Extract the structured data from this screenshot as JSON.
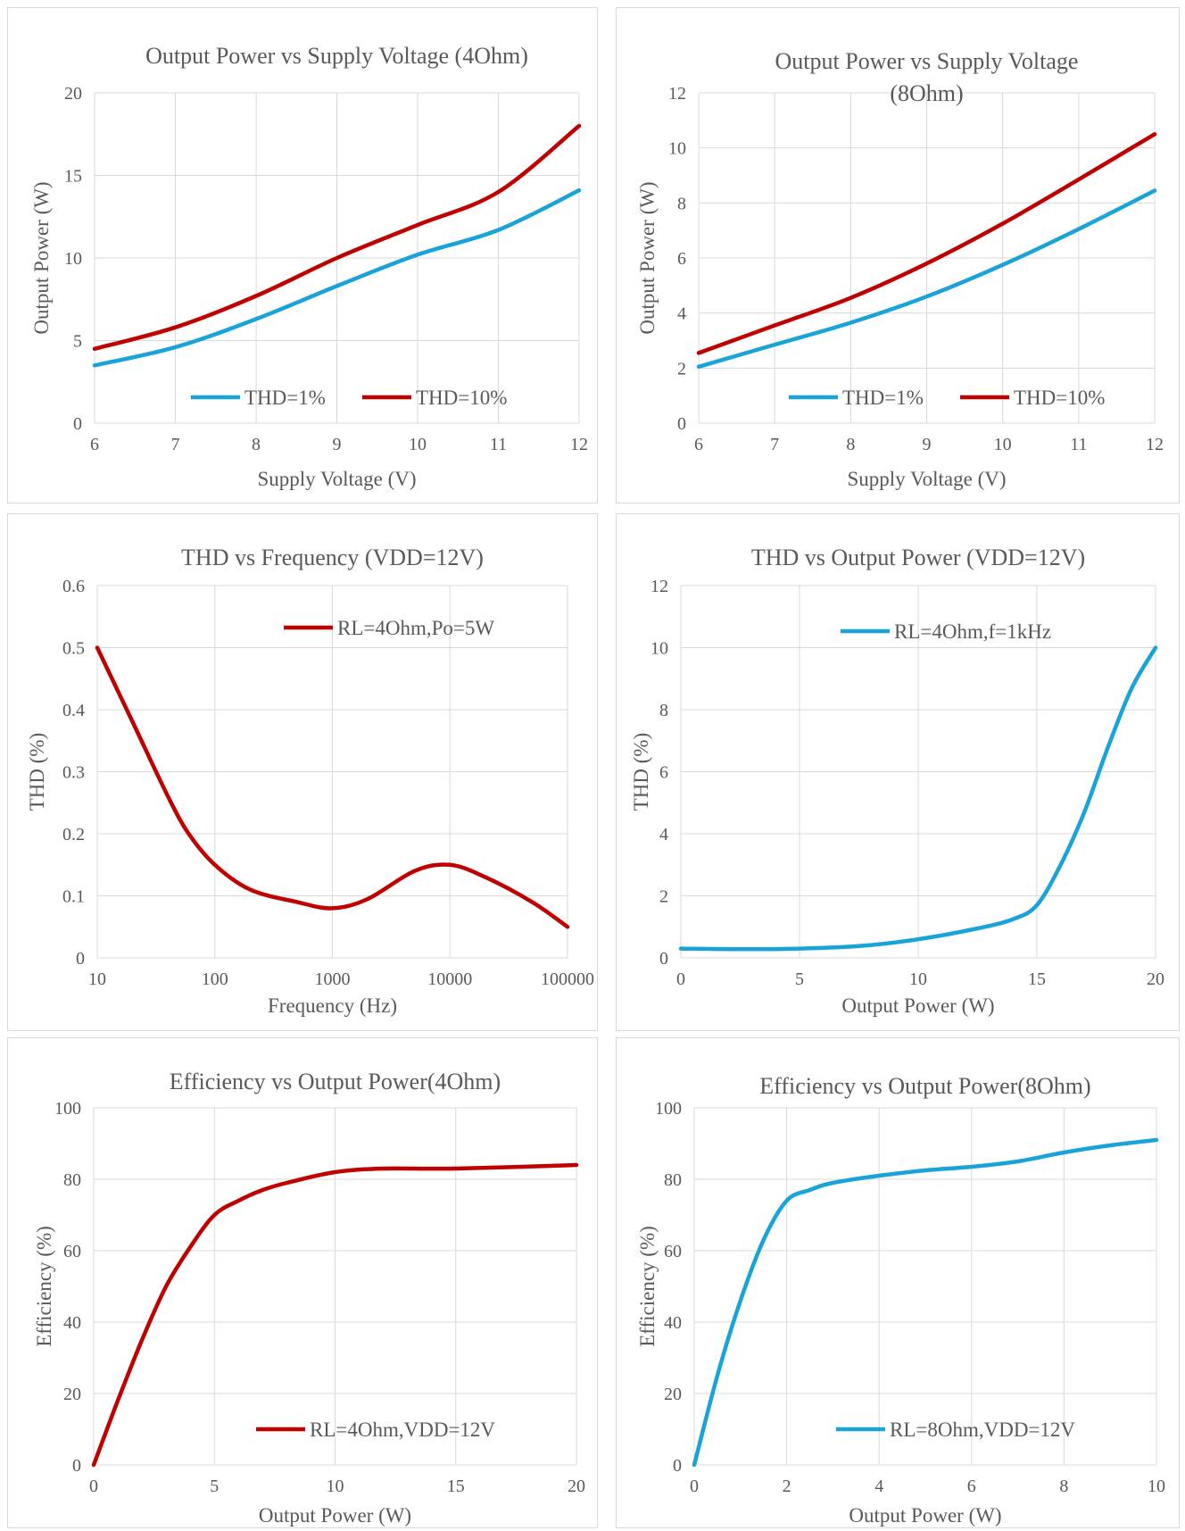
{
  "colors": {
    "blue": "#1aa3d8",
    "red": "#c00000",
    "grid": "#d9d9d9",
    "text": "#595959"
  },
  "chart_data": [
    {
      "id": "p1",
      "type": "line",
      "title": [
        "Output Power vs Supply Voltage (4Ohm)"
      ],
      "xlabel": "Supply Voltage (V)",
      "ylabel": "Output Power (W)",
      "xlim": [
        6,
        12
      ],
      "ylim": [
        0,
        20
      ],
      "xticks": [
        6,
        7,
        8,
        9,
        10,
        11,
        12
      ],
      "yticks": [
        0,
        5,
        10,
        15,
        20
      ],
      "legend_position": "bottom-center",
      "series": [
        {
          "name": "THD=1%",
          "color": "#1aa3d8",
          "x": [
            6,
            7,
            8,
            9,
            10,
            11,
            12
          ],
          "y": [
            3.5,
            4.6,
            6.3,
            8.3,
            10.2,
            11.7,
            14.1
          ]
        },
        {
          "name": "THD=10%",
          "color": "#c00000",
          "x": [
            6,
            7,
            8,
            9,
            10,
            11,
            12
          ],
          "y": [
            4.5,
            5.8,
            7.7,
            10.0,
            12.0,
            14.0,
            18.0
          ]
        }
      ]
    },
    {
      "id": "p2",
      "type": "line",
      "title": [
        "Output Power vs Supply Voltage",
        "(8Ohm)"
      ],
      "xlabel": "Supply Voltage (V)",
      "ylabel": "Output Power (W)",
      "xlim": [
        6,
        12
      ],
      "ylim": [
        0,
        12
      ],
      "xticks": [
        6,
        7,
        8,
        9,
        10,
        11,
        12
      ],
      "yticks": [
        0,
        2,
        4,
        6,
        8,
        10,
        12
      ],
      "legend_position": "bottom-center",
      "series": [
        {
          "name": "THD=1%",
          "color": "#1aa3d8",
          "x": [
            6,
            7,
            8,
            9,
            10,
            11,
            12
          ],
          "y": [
            2.05,
            2.85,
            3.65,
            4.6,
            5.75,
            7.05,
            8.45
          ]
        },
        {
          "name": "THD=10%",
          "color": "#c00000",
          "x": [
            6,
            7,
            8,
            9,
            10,
            11,
            12
          ],
          "y": [
            2.55,
            3.55,
            4.55,
            5.8,
            7.25,
            8.85,
            10.5
          ]
        }
      ]
    },
    {
      "id": "p3",
      "type": "line",
      "title": [
        "THD vs Frequency (VDD=12V)"
      ],
      "xlabel": "Frequency (Hz)",
      "ylabel": "THD (%)",
      "xscale": "log",
      "xlim": [
        10,
        100000
      ],
      "ylim": [
        0,
        0.6
      ],
      "xticks": [
        10,
        100,
        1000,
        10000,
        100000
      ],
      "yticks": [
        0,
        0.1,
        0.2,
        0.3,
        0.4,
        0.5,
        0.6
      ],
      "legend_position": "top-right",
      "series": [
        {
          "name": "RL=4Ohm,Po=5W",
          "color": "#c00000",
          "x": [
            10,
            20,
            40,
            60,
            100,
            200,
            500,
            1000,
            2000,
            5000,
            10000,
            20000,
            50000,
            100000
          ],
          "y": [
            0.5,
            0.38,
            0.26,
            0.2,
            0.15,
            0.11,
            0.09,
            0.08,
            0.095,
            0.14,
            0.15,
            0.13,
            0.09,
            0.05
          ]
        }
      ]
    },
    {
      "id": "p4",
      "type": "line",
      "title": [
        "THD vs Output Power (VDD=12V)"
      ],
      "xlabel": "Output Power (W)",
      "ylabel": "THD (%)",
      "xlim": [
        0,
        20
      ],
      "ylim": [
        0,
        12
      ],
      "xticks": [
        0,
        5,
        10,
        15,
        20
      ],
      "yticks": [
        0,
        2,
        4,
        6,
        8,
        10,
        12
      ],
      "legend_position": "top-right",
      "series": [
        {
          "name": "RL=4Ohm,f=1kHz",
          "color": "#1aa3d8",
          "x": [
            0,
            2.5,
            5,
            7.5,
            10,
            12.5,
            14,
            15,
            16,
            17,
            18,
            19,
            20
          ],
          "y": [
            0.3,
            0.28,
            0.3,
            0.38,
            0.6,
            0.95,
            1.25,
            1.7,
            3.0,
            4.7,
            6.8,
            8.7,
            10.0
          ]
        }
      ]
    },
    {
      "id": "p5",
      "type": "line",
      "title": [
        "Efficiency vs Output Power(4Ohm)"
      ],
      "xlabel": "Output Power (W)",
      "ylabel": "Efficiency (%)",
      "xlim": [
        0,
        20
      ],
      "ylim": [
        0,
        100
      ],
      "xticks": [
        0,
        5,
        10,
        15,
        20
      ],
      "yticks": [
        0,
        20,
        40,
        60,
        80,
        100
      ],
      "legend_position": "bottom-right",
      "series": [
        {
          "name": "RL=4Ohm,VDD=12V",
          "color": "#c00000",
          "x": [
            0,
            1,
            2,
            3,
            4,
            5,
            6,
            7,
            8,
            10,
            12,
            15,
            20
          ],
          "y": [
            0,
            18,
            35,
            50,
            61,
            70,
            74,
            77,
            79,
            82,
            83,
            83,
            84
          ]
        }
      ]
    },
    {
      "id": "p6",
      "type": "line",
      "title": [
        "Efficiency vs Output Power(8Ohm)"
      ],
      "xlabel": "Output Power (W)",
      "ylabel": "Efficiency (%)",
      "xlim": [
        0,
        10
      ],
      "ylim": [
        0,
        100
      ],
      "xticks": [
        0,
        2,
        4,
        6,
        8,
        10
      ],
      "yticks": [
        0,
        20,
        40,
        60,
        80,
        100
      ],
      "legend_position": "bottom-right",
      "series": [
        {
          "name": "RL=8Ohm,VDD=12V",
          "color": "#1aa3d8",
          "x": [
            0,
            0.5,
            1,
            1.5,
            2,
            2.5,
            3,
            4,
            5,
            6,
            7,
            8,
            9,
            10
          ],
          "y": [
            0,
            25,
            46,
            63,
            74,
            77,
            79,
            81,
            82.5,
            83.5,
            85,
            87.5,
            89.5,
            91
          ]
        }
      ]
    }
  ]
}
